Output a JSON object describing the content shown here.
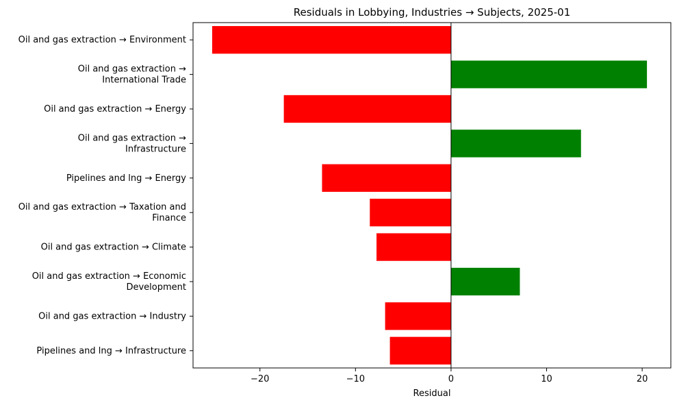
{
  "chart_data": {
    "type": "bar",
    "orientation": "horizontal",
    "title": "Residuals in Lobbying, Industries → Subjects, 2025-01",
    "xlabel": "Residual",
    "ylabel": "",
    "xlim": [
      -27.0,
      23.0
    ],
    "xticks": [
      -20,
      -10,
      0,
      10,
      20
    ],
    "xtick_labels": [
      "−20",
      "−10",
      "0",
      "10",
      "20"
    ],
    "grid": false,
    "colors": {
      "positive": "#008000",
      "negative": "#ff0000",
      "zero_line": "#000000"
    },
    "categories": [
      [
        "Oil and gas extraction → Environment"
      ],
      [
        "Oil and gas extraction →",
        "International Trade"
      ],
      [
        "Oil and gas extraction → Energy"
      ],
      [
        "Oil and gas extraction →",
        "Infrastructure"
      ],
      [
        "Pipelines and lng → Energy"
      ],
      [
        "Oil and gas extraction → Taxation and",
        "Finance"
      ],
      [
        "Oil and gas extraction → Climate"
      ],
      [
        "Oil and gas extraction → Economic",
        "Development"
      ],
      [
        "Oil and gas extraction → Industry"
      ],
      [
        "Pipelines and lng → Infrastructure"
      ]
    ],
    "values": [
      -25.0,
      20.5,
      -17.5,
      13.6,
      -13.5,
      -8.5,
      -7.8,
      7.2,
      -6.9,
      -6.4
    ]
  }
}
